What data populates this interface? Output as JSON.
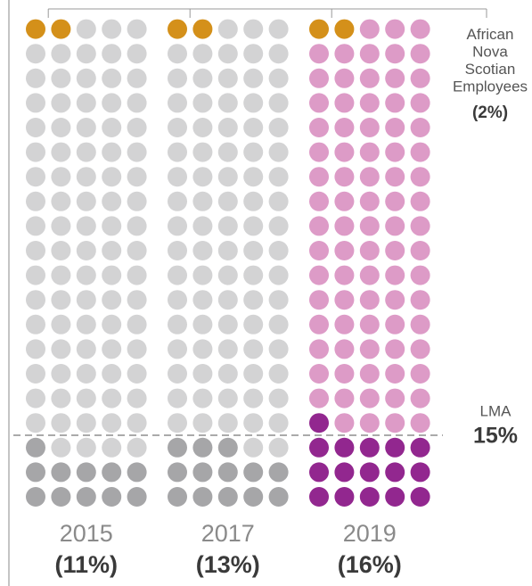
{
  "chart_data": {
    "type": "waffle",
    "categories": [
      "2015",
      "2017",
      "2019"
    ],
    "values": [
      11,
      13,
      16
    ],
    "value_labels": [
      "(11%)",
      "(13%)",
      "(16%)"
    ],
    "light_colors": [
      "#d3d3d4",
      "#d3d3d4",
      "#dd9bc7"
    ],
    "dark_colors": [
      "#a6a6a8",
      "#a6a6a8",
      "#92278f"
    ],
    "ans": {
      "label": "African Nova Scotian Employees",
      "value": 2,
      "value_label": "(2%)",
      "color": "#d4901a"
    },
    "lma": {
      "label": "LMA",
      "value": 15,
      "value_label": "15%"
    }
  }
}
